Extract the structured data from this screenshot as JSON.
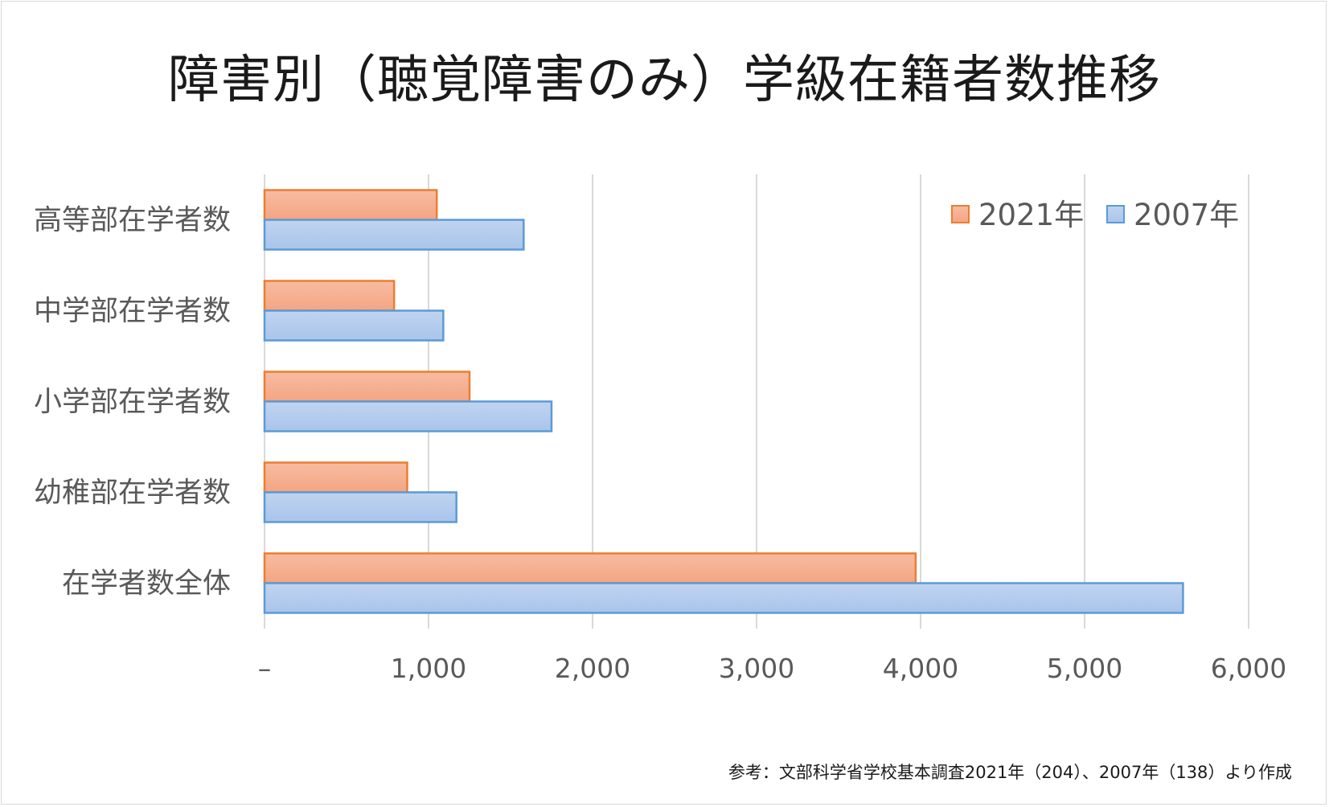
{
  "chart_data": {
    "type": "bar",
    "orientation": "horizontal",
    "title": "障害別（聴覚障害のみ）学級在籍者数推移",
    "categories": [
      "高等部在学者数",
      "中学部在学者数",
      "小学部在学者数",
      "幼稚部在学者数",
      "在学者数全体"
    ],
    "series": [
      {
        "name": "2021年",
        "values": [
          1050,
          790,
          1250,
          870,
          3970
        ],
        "color": "#f4a582",
        "border": "#ed7d31"
      },
      {
        "name": "2007年",
        "values": [
          1580,
          1090,
          1750,
          1170,
          5600
        ],
        "color": "#a9c4eb",
        "border": "#5b9bd5"
      }
    ],
    "xlim": [
      0,
      6000
    ],
    "ticks": [
      0,
      1000,
      2000,
      3000,
      4000,
      5000,
      6000
    ],
    "tick_labels": [
      "–",
      "1,000",
      "2,000",
      "3,000",
      "4,000",
      "5,000",
      "6,000"
    ],
    "grid": true,
    "legend_position": "top-right"
  },
  "footnote": "参考：文部科学省学校基本調査2021年（204）、2007年（138）より作成"
}
